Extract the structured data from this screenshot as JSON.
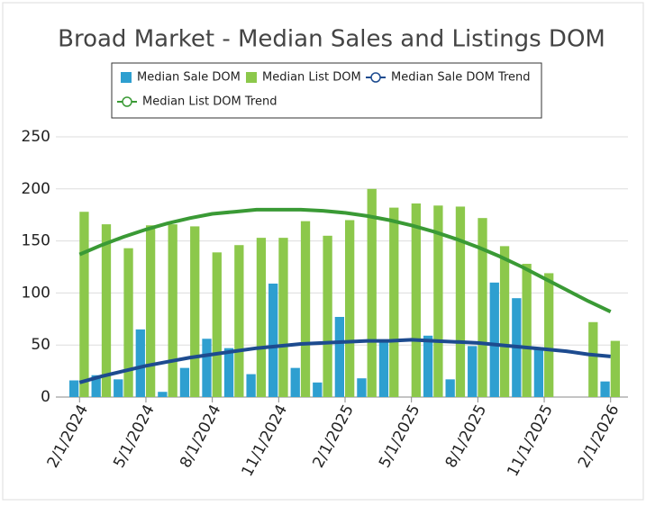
{
  "chart_data": {
    "type": "bar",
    "title": "Broad Market - Median Sales and Listings DOM",
    "categories": [
      "2/1/2024",
      null,
      null,
      "5/1/2024",
      null,
      null,
      "8/1/2024",
      null,
      null,
      "11/1/2024",
      null,
      null,
      "2/1/2025",
      null,
      null,
      "5/1/2025",
      null,
      null,
      "8/1/2025",
      null,
      null,
      "11/1/2025",
      null,
      null,
      "2/1/2026"
    ],
    "series": [
      {
        "name": "Median Sale DOM",
        "type": "bar",
        "color": "#2e9fd0",
        "values": [
          16,
          21,
          17,
          65,
          5,
          28,
          56,
          47,
          22,
          109,
          28,
          14,
          77,
          18,
          55,
          null,
          59,
          17,
          49,
          110,
          95,
          48,
          null,
          null,
          15
        ]
      },
      {
        "name": "Median List DOM",
        "type": "bar",
        "color": "#8cc84b",
        "values": [
          178,
          166,
          143,
          165,
          166,
          164,
          139,
          146,
          153,
          153,
          169,
          155,
          170,
          200,
          182,
          186,
          184,
          183,
          172,
          145,
          128,
          119,
          null,
          72,
          54
        ]
      },
      {
        "name": "Median Sale DOM Trend",
        "type": "line",
        "color": "#1d4b8f",
        "values": [
          14,
          20,
          25,
          30,
          34,
          38,
          41,
          44,
          47,
          49,
          51,
          52,
          53,
          54,
          54,
          55,
          54,
          53,
          52,
          50,
          48,
          46,
          44,
          41,
          39
        ]
      },
      {
        "name": "Median List DOM Trend",
        "type": "line",
        "color": "#3a9a35",
        "values": [
          137,
          146,
          154,
          161,
          167,
          172,
          176,
          178,
          180,
          180,
          180,
          179,
          177,
          174,
          170,
          165,
          159,
          152,
          144,
          135,
          125,
          114,
          103,
          92,
          82
        ]
      }
    ],
    "ylim": [
      0,
      250
    ],
    "yticks": [
      0,
      50,
      100,
      150,
      200,
      250
    ],
    "grid": true
  }
}
